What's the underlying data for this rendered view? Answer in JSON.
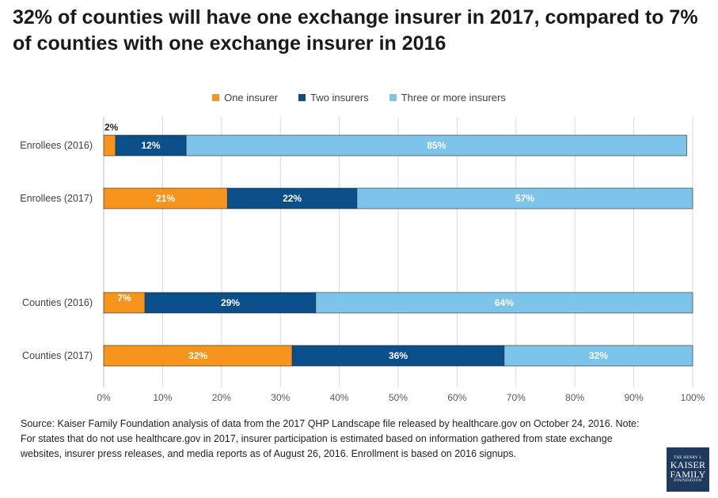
{
  "title": "32% of counties will have one exchange insurer in 2017, compared to 7% of counties with one exchange insurer in 2016",
  "legend": [
    {
      "label": "One insurer",
      "color": "#F7941D"
    },
    {
      "label": "Two insurers",
      "color": "#0B4F8A"
    },
    {
      "label": "Three or more insurers",
      "color": "#7DC4EA"
    }
  ],
  "source": "Source: Kaiser Family Foundation analysis of data from the 2017 QHP Landscape file released by healthcare.gov on October 24, 2016. Note: For states that do not use healthcare.gov in 2017, insurer participation is estimated based on information gathered from state exchange websites, insurer press releases, and media reports as of August 26, 2016. Enrollment is based on 2016 signups.",
  "logo": {
    "line1": "THE HENRY J.",
    "line2": "KAISER",
    "line3": "FAMILY",
    "line4": "FOUNDATION"
  },
  "chart_data": {
    "type": "bar",
    "orientation": "horizontal",
    "stacked": true,
    "categories": [
      "Enrollees (2016)",
      "Enrollees (2017)",
      "Counties (2016)",
      "Counties (2017)"
    ],
    "series": [
      {
        "name": "One insurer",
        "values": [
          2,
          21,
          7,
          32
        ],
        "labels": [
          "2%",
          "21%",
          "7%",
          "32%"
        ],
        "color": "#F7941D"
      },
      {
        "name": "Two insurers",
        "values": [
          12,
          22,
          29,
          36
        ],
        "labels": [
          "12%",
          "22%",
          "29%",
          "36%"
        ],
        "color": "#0B4F8A"
      },
      {
        "name": "Three or more insurers",
        "values": [
          85,
          57,
          64,
          32
        ],
        "labels": [
          "85%",
          "57%",
          "64%",
          "32%"
        ],
        "color": "#7DC4EA"
      }
    ],
    "xlim": [
      0,
      100
    ],
    "xticks": [
      "0%",
      "10%",
      "20%",
      "30%",
      "40%",
      "50%",
      "60%",
      "70%",
      "80%",
      "90%",
      "100%"
    ],
    "grid": true,
    "legend_position": "top-center"
  }
}
